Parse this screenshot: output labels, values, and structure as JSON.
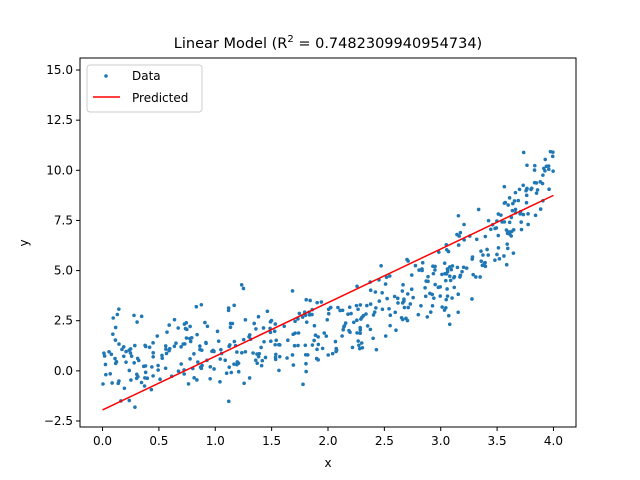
{
  "chart_data": {
    "type": "scatter",
    "title_prefix": "Linear Model (R",
    "title_sup": "2",
    "title_suffix": " = 0.7482309940954734)",
    "xlabel": "x",
    "ylabel": "y",
    "xlim": [
      -0.2,
      4.2
    ],
    "ylim": [
      -2.8,
      15.6
    ],
    "xticks": [
      0.0,
      0.5,
      1.0,
      1.5,
      2.0,
      2.5,
      3.0,
      3.5,
      4.0
    ],
    "xtick_labels": [
      "0.0",
      "0.5",
      "1.0",
      "1.5",
      "2.0",
      "2.5",
      "3.0",
      "3.5",
      "4.0"
    ],
    "yticks": [
      -2.5,
      0.0,
      2.5,
      5.0,
      7.5,
      10.0,
      12.5,
      15.0
    ],
    "ytick_labels": [
      "−2.5",
      "0.0",
      "2.5",
      "5.0",
      "7.5",
      "10.0",
      "12.5",
      "15.0"
    ],
    "grid": false,
    "legend_position": "top-left",
    "series": [
      {
        "name": "Data",
        "kind": "scatter",
        "color": "#1f77b4",
        "trend": "quadratic-exp",
        "x_range": [
          0.0,
          4.0
        ],
        "n_points": 500,
        "noise_sd": 1.0
      },
      {
        "name": "Predicted",
        "kind": "line",
        "color": "#ff0000",
        "x": [
          0.0,
          4.0
        ],
        "y": [
          -1.95,
          8.75
        ]
      }
    ]
  }
}
